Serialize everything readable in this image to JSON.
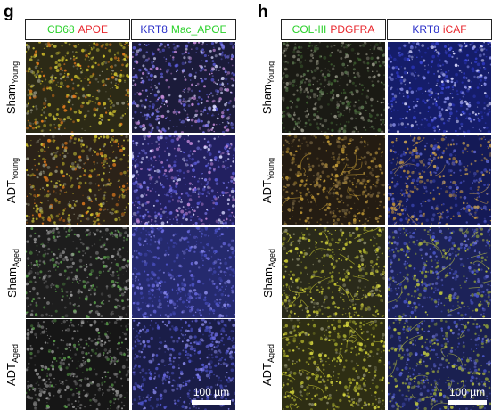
{
  "panel_g": {
    "letter": "g",
    "headers": [
      {
        "parts": [
          {
            "text": "CD68",
            "color": "#2bd12b"
          },
          {
            "text": "APOE",
            "color": "#e8262c"
          }
        ]
      },
      {
        "parts": [
          {
            "text": "KRT8",
            "color": "#2c31c9"
          },
          {
            "text": "Mac_APOE",
            "color": "#2bd12b"
          }
        ]
      }
    ],
    "rows": [
      {
        "base": "Sham",
        "sub": "Young"
      },
      {
        "base": "ADT",
        "sub": "Young"
      },
      {
        "base": "Sham",
        "sub": "Aged"
      },
      {
        "base": "ADT",
        "sub": "Aged"
      }
    ],
    "scale_bar": "100 µm"
  },
  "panel_h": {
    "letter": "h",
    "headers": [
      {
        "parts": [
          {
            "text": "COL-III",
            "color": "#2bd12b"
          },
          {
            "text": "PDGFRA",
            "color": "#e8262c"
          }
        ]
      },
      {
        "parts": [
          {
            "text": "KRT8",
            "color": "#2c31c9"
          },
          {
            "text": "iCAF",
            "color": "#e8262c"
          }
        ]
      }
    ],
    "rows": [
      {
        "base": "Sham",
        "sub": "Young"
      },
      {
        "base": "ADT",
        "sub": "Young"
      },
      {
        "base": "Sham",
        "sub": "Aged"
      },
      {
        "base": "ADT",
        "sub": "Aged"
      }
    ],
    "scale_bar": "100 µm"
  },
  "colors": {
    "green": "#2bd12b",
    "red": "#e8262c",
    "blue": "#2c31c9"
  }
}
